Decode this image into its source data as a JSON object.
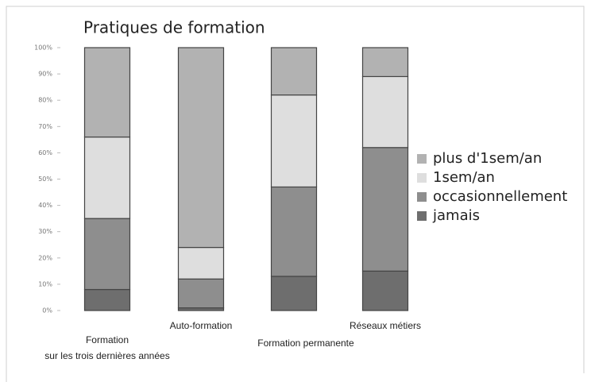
{
  "chart_data": {
    "type": "stacked_bar",
    "title": "Pratiques de formation",
    "categories": [
      "Formation\nsur les trois dernières années",
      "Auto-formation",
      "Formation permanente",
      "Réseaux métiers"
    ],
    "series": [
      {
        "name": "jamais",
        "color": "#6e6e6e",
        "values": [
          8,
          1,
          13,
          15
        ]
      },
      {
        "name": "occasionnellement",
        "color": "#8e8e8e",
        "values": [
          27,
          11,
          34,
          47
        ]
      },
      {
        "name": "1sem/an",
        "color": "#dedede",
        "values": [
          31,
          12,
          35,
          27
        ]
      },
      {
        "name": "plus d'1sem/an",
        "color": "#b2b2b2",
        "values": [
          34,
          76,
          18,
          11
        ]
      }
    ],
    "ylim": [
      0,
      100
    ],
    "yticks": [
      {
        "value": 0,
        "label": "0%"
      },
      {
        "value": 10,
        "label": "10%"
      },
      {
        "value": 20,
        "label": "20%"
      },
      {
        "value": 30,
        "label": "30%"
      },
      {
        "value": 40,
        "label": "40%"
      },
      {
        "value": 50,
        "label": "50%"
      },
      {
        "value": 60,
        "label": "60%"
      },
      {
        "value": 70,
        "label": "70%"
      },
      {
        "value": 80,
        "label": "80%"
      },
      {
        "value": 90,
        "label": "90%"
      },
      {
        "value": 100,
        "label": "100%"
      }
    ]
  }
}
